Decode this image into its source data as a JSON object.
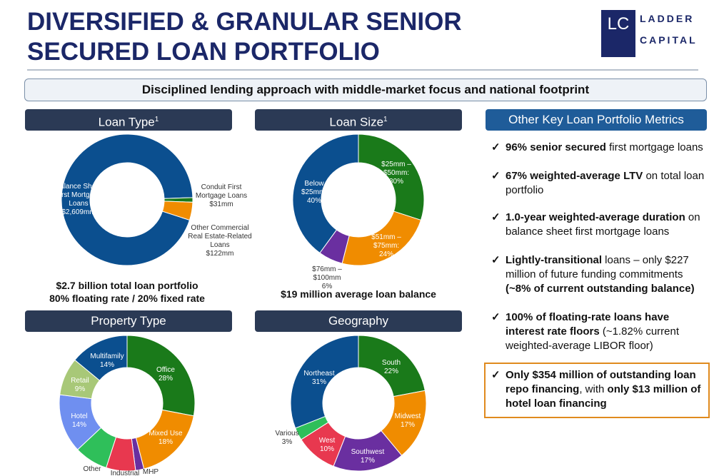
{
  "header": {
    "title": "DIVERSIFIED & GRANULAR SENIOR SECURED LOAN PORTFOLIO",
    "banner": "Disciplined lending approach with middle-market focus and national footprint"
  },
  "logo": {
    "mark": "LC",
    "line1": "LADDER",
    "line2": "CAPITAL"
  },
  "chart_data": [
    {
      "type": "donut",
      "title": "Loan Type",
      "title_note": "1",
      "categories": [
        "Balance Sheet First Mortgage Loans",
        "Conduit First Mortgage Loans",
        "Other Commercial Real Estate-Related Loans"
      ],
      "values": [
        2609,
        31,
        122
      ],
      "value_labels": [
        "$2,609mm",
        "$31mm",
        "$122mm"
      ],
      "colors": [
        "#0b4f8f",
        "#1a7a1a",
        "#f08c00"
      ],
      "notes": [
        "$2.7 billion total loan portfolio",
        "80% floating rate / 20% fixed rate"
      ]
    },
    {
      "type": "donut",
      "title": "Loan Size",
      "title_note": "1",
      "categories": [
        "$25mm – $50mm:",
        "$51mm – $75mm:",
        "$76mm – $100mm",
        "Below $25mm:"
      ],
      "values": [
        30,
        24,
        6,
        40
      ],
      "value_labels": [
        "30%",
        "24%",
        "6%",
        "40%"
      ],
      "colors": [
        "#1a7a1a",
        "#f08c00",
        "#6a2fa0",
        "#0b4f8f"
      ],
      "notes": [
        "$19 million average loan balance"
      ]
    },
    {
      "type": "donut",
      "title": "Property Type",
      "categories": [
        "Office",
        "Mixed Use",
        "MHP",
        "Industrial",
        "Other",
        "Hotel",
        "Retail",
        "Multifamily"
      ],
      "values": [
        28,
        18,
        2,
        7,
        8,
        14,
        9,
        14
      ],
      "value_labels": [
        "28%",
        "18%",
        null,
        null,
        null,
        "14%",
        "9%",
        "14%"
      ],
      "colors": [
        "#1a7a1a",
        "#f08c00",
        "#6a2fa0",
        "#e8384f",
        "#2fbf5a",
        "#6f8ff0",
        "#a8c878",
        "#0b4f8f"
      ]
    },
    {
      "type": "donut",
      "title": "Geography",
      "categories": [
        "South",
        "Midwest",
        "Southwest",
        "West",
        "Various",
        "Northeast"
      ],
      "values": [
        22,
        17,
        17,
        10,
        3,
        31
      ],
      "value_labels": [
        "22%",
        "17%",
        "17%",
        "10%",
        "3%",
        "31%"
      ],
      "colors": [
        "#1a7a1a",
        "#f08c00",
        "#6a2fa0",
        "#e8384f",
        "#2fbf5a",
        "#0b4f8f"
      ]
    }
  ],
  "metrics": {
    "title": "Other Key Loan Portfolio Metrics",
    "bullets": [
      {
        "segments": [
          {
            "text": "96% senior secured",
            "bold": true
          },
          {
            "text": " first mortgage loans",
            "bold": false
          }
        ]
      },
      {
        "segments": [
          {
            "text": "67% weighted-average LTV",
            "bold": true
          },
          {
            "text": " on total loan portfolio",
            "bold": false
          }
        ]
      },
      {
        "segments": [
          {
            "text": "1.0-year weighted-average duration",
            "bold": true
          },
          {
            "text": " on balance sheet first mortgage loans",
            "bold": false
          }
        ]
      },
      {
        "segments": [
          {
            "text": "Lightly-transitional",
            "bold": true
          },
          {
            "text": " loans – only $227 million of future funding commitments ",
            "bold": false
          },
          {
            "text": "(~8% of current outstanding balance)",
            "bold": true
          }
        ]
      },
      {
        "segments": [
          {
            "text": "100% of floating-rate loans have interest rate floors",
            "bold": true
          },
          {
            "text": " (~1.82% current weighted-average LIBOR floor)",
            "bold": false
          }
        ]
      },
      {
        "segments": [
          {
            "text": "Only $354 million of outstanding loan repo financing",
            "bold": true
          },
          {
            "text": ", with ",
            "bold": false
          },
          {
            "text": "only $13 million of hotel loan financing",
            "bold": true
          }
        ],
        "highlight": true
      }
    ]
  }
}
